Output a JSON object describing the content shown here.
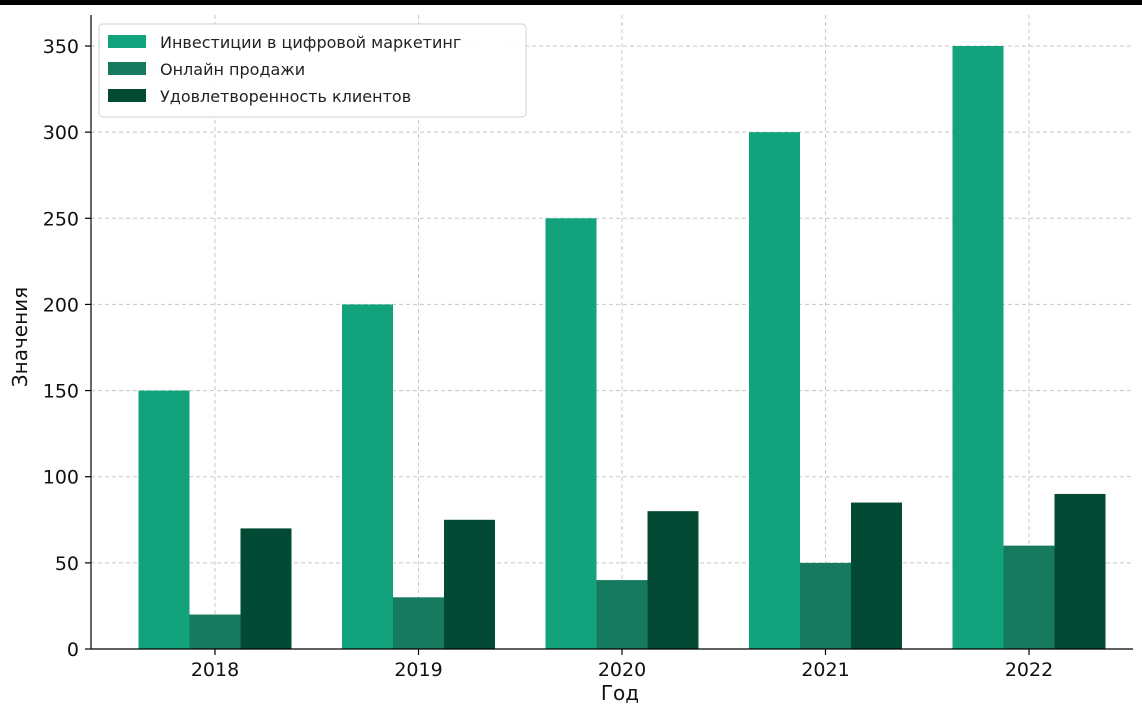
{
  "chart_data": {
    "type": "bar",
    "categories": [
      "2018",
      "2019",
      "2020",
      "2021",
      "2022"
    ],
    "series": [
      {
        "name": "Инвестиции в цифровой маркетинг",
        "values": [
          150,
          200,
          250,
          300,
          350
        ],
        "color": "#12a37c"
      },
      {
        "name": "Онлайн продажи",
        "values": [
          20,
          30,
          40,
          50,
          60
        ],
        "color": "#167a5e"
      },
      {
        "name": "Удовлетворенность клиентов",
        "values": [
          70,
          75,
          80,
          85,
          90
        ],
        "color": "#034a35"
      }
    ],
    "xlabel": "Год",
    "ylabel": "Значения",
    "ylim": [
      0,
      350
    ],
    "yticks": [
      0,
      50,
      100,
      150,
      200,
      250,
      300,
      350
    ],
    "grid": true,
    "legend_position": "top-left"
  }
}
